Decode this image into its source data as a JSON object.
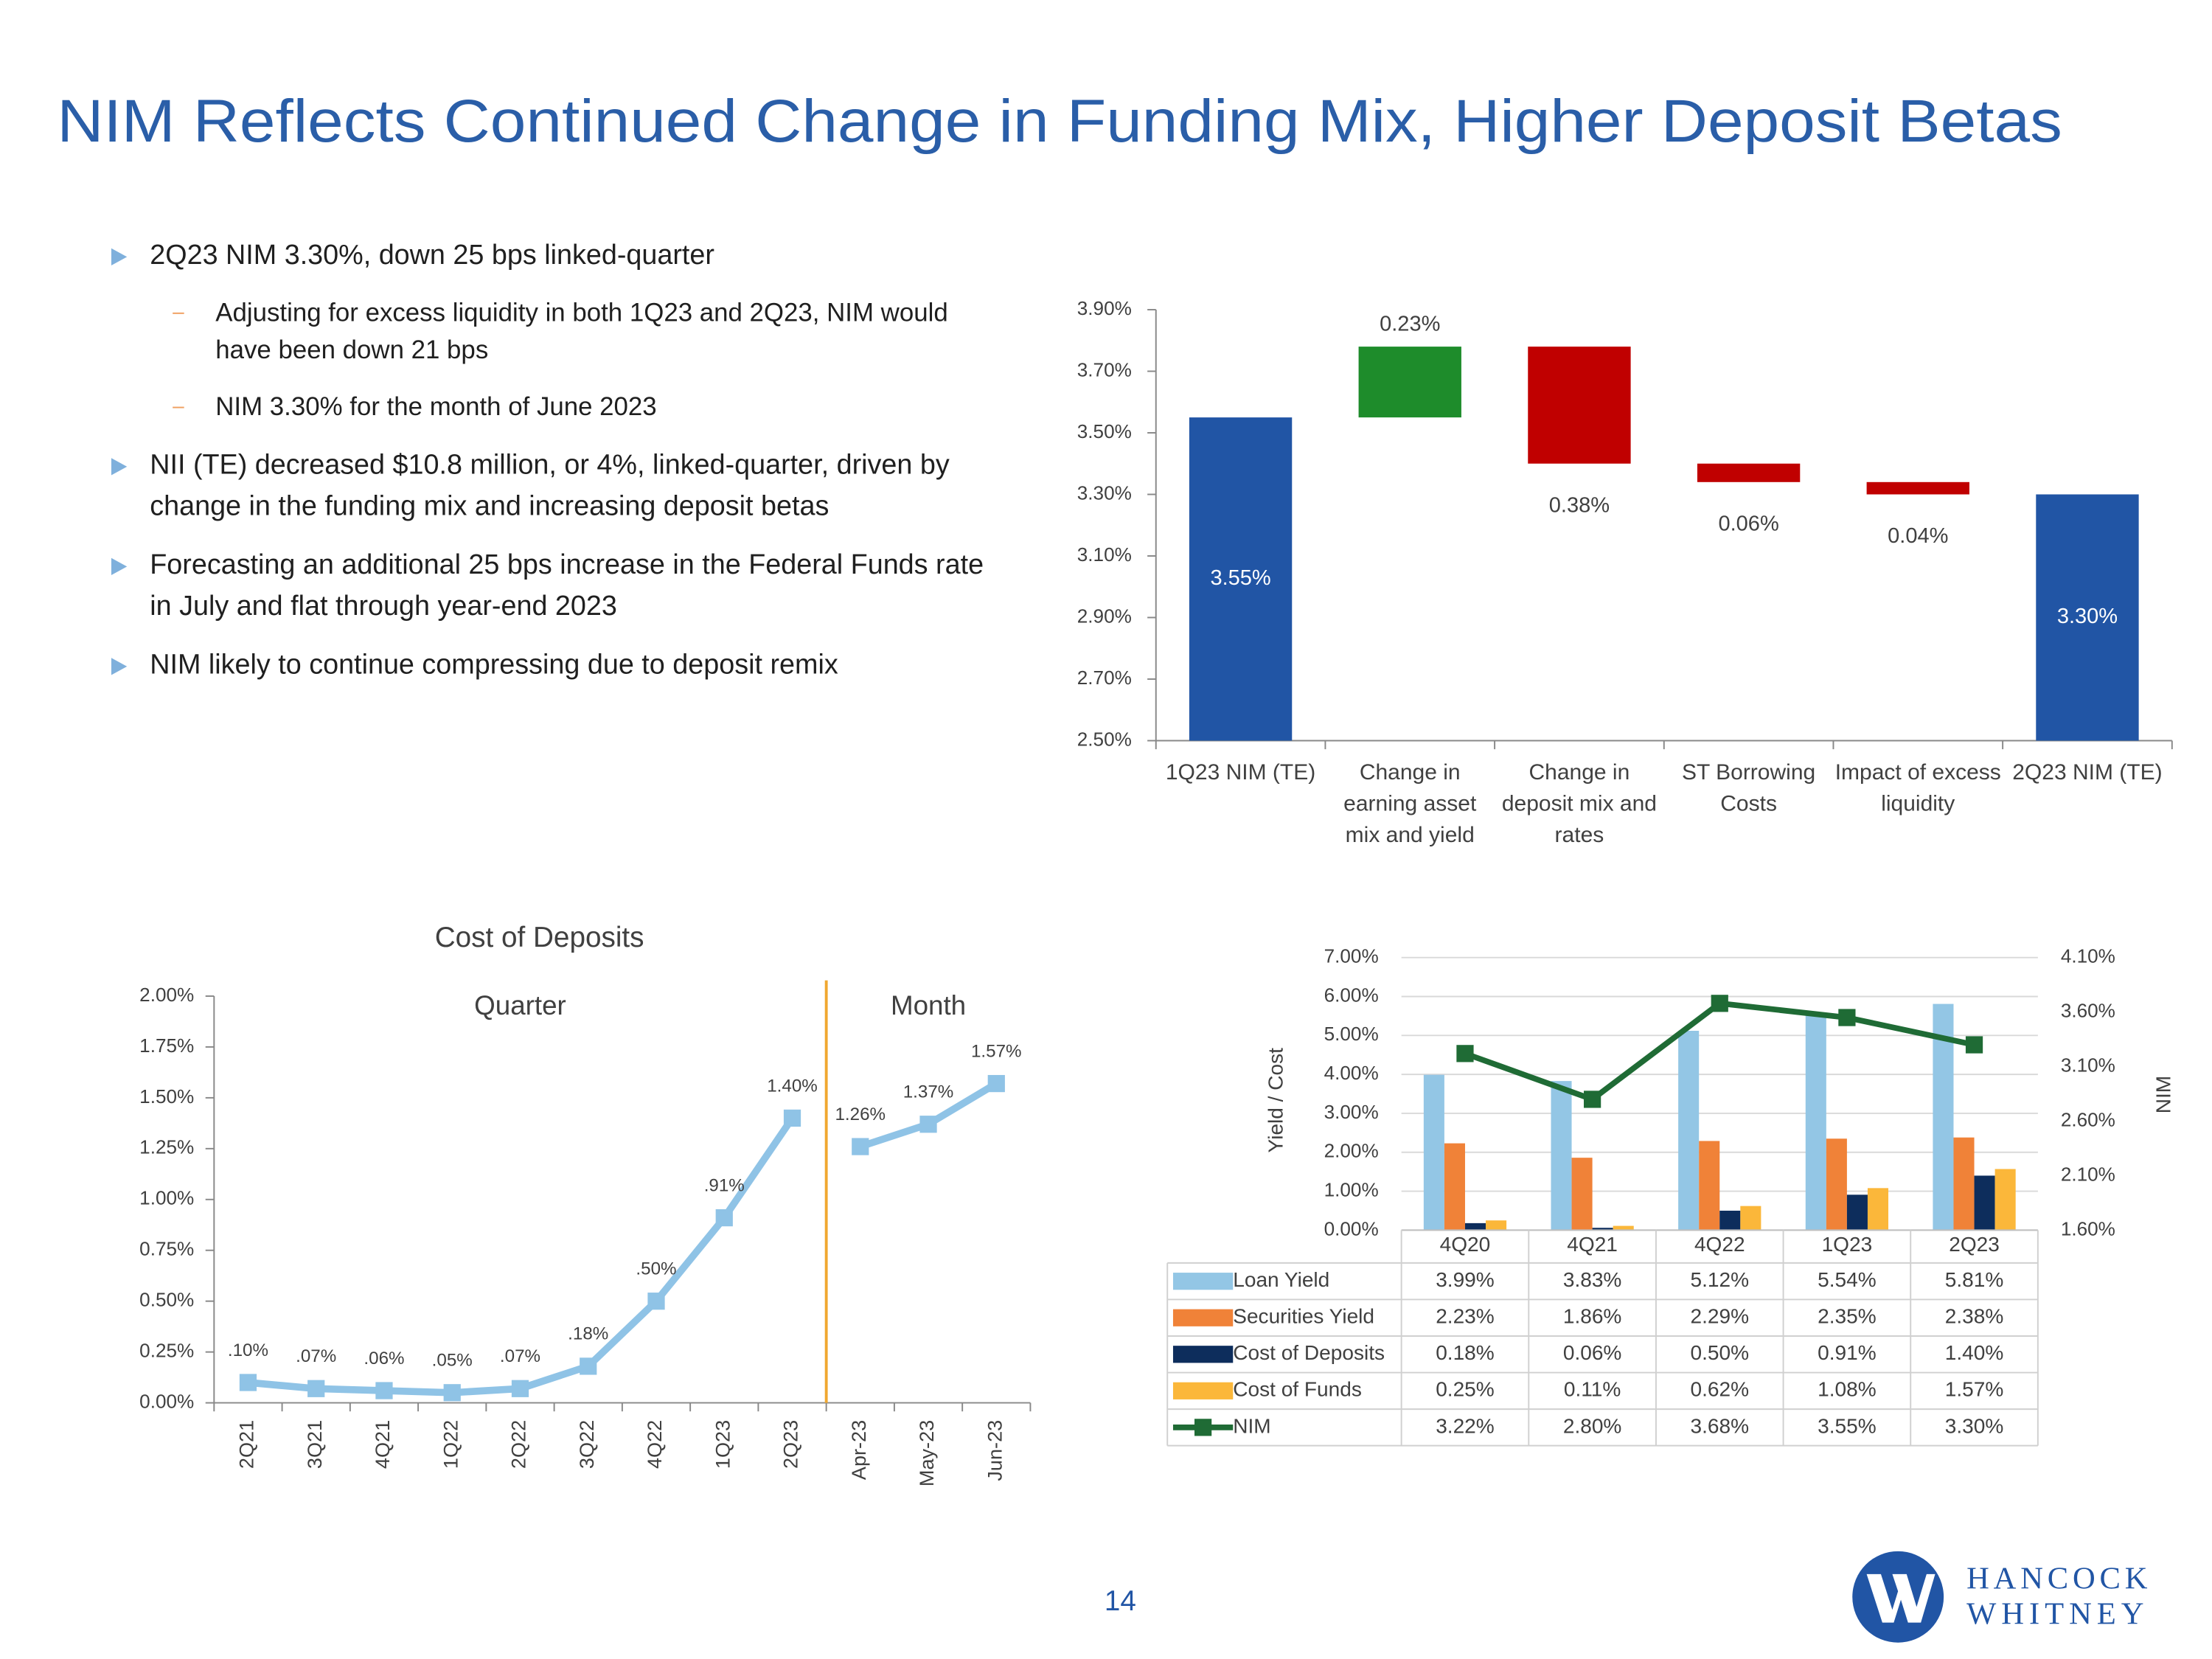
{
  "title": "NIM Reflects Continued Change in Funding Mix, Higher Deposit Betas",
  "bullets": [
    {
      "text": "2Q23 NIM 3.30%, down 25 bps linked-quarter",
      "subs": [
        "Adjusting for excess liquidity in both 1Q23 and 2Q23, NIM would have been down 21 bps",
        "NIM 3.30% for the month of June 2023"
      ]
    },
    {
      "text": "NII (TE) decreased $10.8 million, or 4%, linked-quarter, driven by change in the funding mix and increasing deposit betas"
    },
    {
      "text": "Forecasting an additional 25 bps increase in the Federal Funds rate in July and flat through year-end 2023"
    },
    {
      "text": "NIM likely to continue compressing due to deposit remix"
    }
  ],
  "chart_data": [
    {
      "type": "waterfall",
      "categories": [
        "1Q23 NIM (TE)",
        "Change in earning asset mix and yield",
        "Change in deposit mix and rates",
        "ST Borrowing Costs",
        "Impact of excess liquidity",
        "2Q23 NIM (TE)"
      ],
      "values": [
        3.55,
        0.23,
        -0.38,
        -0.06,
        -0.04,
        3.3
      ],
      "value_labels": [
        "3.55%",
        "0.23%",
        "0.38%",
        "0.06%",
        "0.04%",
        "3.30%"
      ],
      "is_total": [
        true,
        false,
        false,
        false,
        false,
        true
      ],
      "colors": {
        "total": "#2155a5",
        "increase": "#1e8c2b",
        "decrease": "#c00000"
      },
      "ylim": [
        2.5,
        3.9
      ],
      "yticks": [
        {
          "value": 2.5,
          "label": "2.50%"
        },
        {
          "value": 2.7,
          "label": "2.70%"
        },
        {
          "value": 2.9,
          "label": "2.90%"
        },
        {
          "value": 3.1,
          "label": "3.10%"
        },
        {
          "value": 3.3,
          "label": "3.30%"
        },
        {
          "value": 3.5,
          "label": "3.50%"
        },
        {
          "value": 3.7,
          "label": "3.70%"
        },
        {
          "value": 3.9,
          "label": "3.90%"
        }
      ]
    },
    {
      "type": "line",
      "title": "Cost of Deposits",
      "color": "#8fc3e6",
      "divider_color": "#f0a830",
      "groups": [
        {
          "label": "Quarter",
          "categories": [
            "2Q21",
            "3Q21",
            "4Q21",
            "1Q22",
            "2Q22",
            "3Q22",
            "4Q22",
            "1Q23",
            "2Q23"
          ],
          "values": [
            0.1,
            0.07,
            0.06,
            0.05,
            0.07,
            0.18,
            0.5,
            0.91,
            1.4
          ],
          "value_labels": [
            ".10%",
            ".07%",
            ".06%",
            ".05%",
            ".07%",
            ".18%",
            ".50%",
            ".91%",
            "1.40%"
          ]
        },
        {
          "label": "Month",
          "categories": [
            "Apr-23",
            "May-23",
            "Jun-23"
          ],
          "values": [
            1.26,
            1.37,
            1.57
          ],
          "value_labels": [
            "1.26%",
            "1.37%",
            "1.57%"
          ]
        }
      ],
      "ylim": [
        0,
        2
      ],
      "yticks": [
        {
          "value": 0,
          "label": "0.00%"
        },
        {
          "value": 0.25,
          "label": "0.25%"
        },
        {
          "value": 0.5,
          "label": "0.50%"
        },
        {
          "value": 0.75,
          "label": "0.75%"
        },
        {
          "value": 1,
          "label": "1.00%"
        },
        {
          "value": 1.25,
          "label": "1.25%"
        },
        {
          "value": 1.5,
          "label": "1.50%"
        },
        {
          "value": 1.75,
          "label": "1.75%"
        },
        {
          "value": 2,
          "label": "2.00%"
        }
      ]
    },
    {
      "type": "bar_line_table",
      "ylabel": "Yield / Cost",
      "y2label": "NIM",
      "categories": [
        "4Q20",
        "4Q21",
        "4Q22",
        "1Q23",
        "2Q23"
      ],
      "series": [
        {
          "name": "Loan Yield",
          "color": "#93c6e5",
          "values": [
            3.99,
            3.83,
            5.12,
            5.54,
            5.81
          ],
          "value_labels": [
            "3.99%",
            "3.83%",
            "5.12%",
            "5.54%",
            "5.81%"
          ]
        },
        {
          "name": "Securities Yield",
          "color": "#f08238",
          "values": [
            2.23,
            1.86,
            2.29,
            2.35,
            2.38
          ],
          "value_labels": [
            "2.23%",
            "1.86%",
            "2.29%",
            "2.35%",
            "2.38%"
          ]
        },
        {
          "name": "Cost of Deposits",
          "color": "#0d2d5c",
          "values": [
            0.18,
            0.06,
            0.5,
            0.91,
            1.4
          ],
          "value_labels": [
            "0.18%",
            "0.06%",
            "0.50%",
            "0.91%",
            "1.40%"
          ]
        },
        {
          "name": "Cost of Funds",
          "color": "#fbb73a",
          "values": [
            0.25,
            0.11,
            0.62,
            1.08,
            1.57
          ],
          "value_labels": [
            "0.25%",
            "0.11%",
            "0.62%",
            "1.08%",
            "1.57%"
          ]
        },
        {
          "name": "NIM",
          "color": "#1f6b35",
          "axis": "y2",
          "values": [
            3.22,
            2.8,
            3.68,
            3.55,
            3.3
          ],
          "value_labels": [
            "3.22%",
            "2.80%",
            "3.68%",
            "3.55%",
            "3.30%"
          ]
        }
      ],
      "ylim": [
        0,
        7
      ],
      "yticks": [
        {
          "value": 0,
          "label": "0.00%"
        },
        {
          "value": 1,
          "label": "1.00%"
        },
        {
          "value": 2,
          "label": "2.00%"
        },
        {
          "value": 3,
          "label": "3.00%"
        },
        {
          "value": 4,
          "label": "4.00%"
        },
        {
          "value": 5,
          "label": "5.00%"
        },
        {
          "value": 6,
          "label": "6.00%"
        },
        {
          "value": 7,
          "label": "7.00%"
        }
      ],
      "y2lim": [
        1.6,
        4.1
      ],
      "y2ticks": [
        {
          "value": 1.6,
          "label": "1.60%"
        },
        {
          "value": 2.1,
          "label": "2.10%"
        },
        {
          "value": 2.6,
          "label": "2.60%"
        },
        {
          "value": 3.1,
          "label": "3.10%"
        },
        {
          "value": 3.6,
          "label": "3.60%"
        },
        {
          "value": 4.1,
          "label": "4.10%"
        }
      ],
      "grid": true
    }
  ],
  "page_number": "14",
  "logo": [
    "HANCOCK",
    "WHITNEY"
  ]
}
